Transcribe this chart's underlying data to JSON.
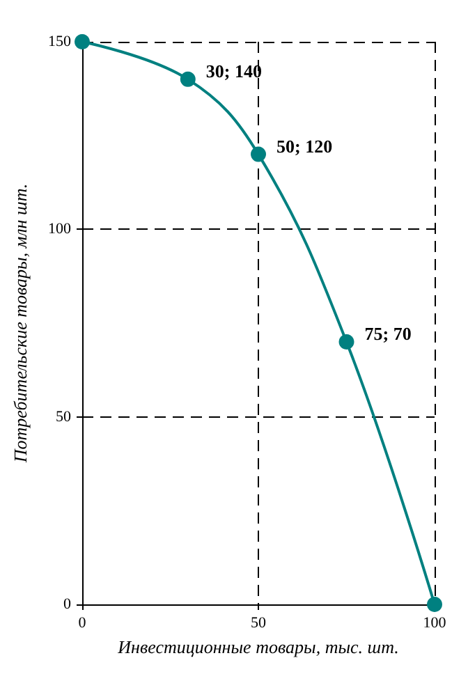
{
  "chart_data": {
    "type": "line",
    "xlabel": "Инвестиционные товары, тыс. шт.",
    "ylabel": "Потребительские товары, млн шт.",
    "x": [
      0,
      30,
      50,
      75,
      100
    ],
    "series": [
      {
        "color": "#008080",
        "values": [
          150,
          140,
          120,
          70,
          0
        ]
      }
    ],
    "xlim": [
      0,
      100
    ],
    "xticks": [
      0,
      50,
      100
    ],
    "ylim": [
      0,
      150
    ],
    "yticks": [
      0,
      50,
      100,
      150
    ],
    "grid": true,
    "marker": "circle",
    "line_style": "solid",
    "annotations": [
      {
        "text": "30; 140",
        "x": 30,
        "y": 140
      },
      {
        "text": "50; 120",
        "x": 50,
        "y": 120
      },
      {
        "text": "75; 70",
        "x": 75,
        "y": 70
      }
    ]
  }
}
